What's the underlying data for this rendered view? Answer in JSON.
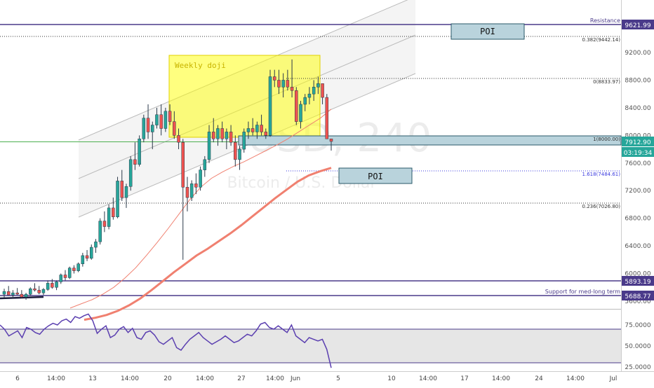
{
  "chart_data": {
    "type": "candlestick",
    "symbol_watermark": "BTCUSD, 240",
    "symbol_subtitle": "Bitcoin / U.S. Dollar",
    "x_tick_labels": [
      "6",
      "14:00",
      "13",
      "14:00",
      "20",
      "14:00",
      "27",
      "14:00",
      "Jun",
      "5",
      "10",
      "14:00",
      "17",
      "14:00",
      "24",
      "14:00",
      "Jul"
    ],
    "y_tick_labels": [
      "9200.00",
      "8800.00",
      "8400.00",
      "8000.00",
      "7600.00",
      "7200.00",
      "6800.00",
      "6400.00",
      "6000.00",
      "5600.00"
    ],
    "y_range": [
      5150,
      10050
    ],
    "last_price": {
      "value": "7912.90",
      "countdown": "03:19:34"
    },
    "horizontal_levels": [
      {
        "value": 9621.99,
        "label": "9621.99",
        "note": "Resistance"
      },
      {
        "value": 5893.19,
        "label": "5893.19",
        "note": ""
      },
      {
        "value": 5688.77,
        "label": "5688.77",
        "note": "Support for med-long term"
      }
    ],
    "fibonacci_levels": [
      {
        "ratio": "0.382",
        "value": 9442.14,
        "label": "0.382(9442.14)"
      },
      {
        "ratio": "0",
        "value": 8833.97,
        "label": "0(8833.97)"
      },
      {
        "ratio": "1",
        "value": 8000.0,
        "label": "1(8000.00)"
      },
      {
        "ratio": "1.618",
        "value": 7484.61,
        "label": "1.618(7484.61)"
      },
      {
        "ratio": "0.236",
        "value": 7026.8,
        "label": "0.236(7026.80)"
      }
    ],
    "annotations": [
      {
        "type": "box",
        "text": "Weekly doji",
        "color": "#ffff00"
      },
      {
        "type": "label",
        "text": "POI",
        "near_value": 9500
      },
      {
        "type": "label",
        "text": "POI",
        "near_value": 7420
      }
    ],
    "candles_ohlc": [
      [
        5700,
        5780,
        5650,
        5740
      ],
      [
        5740,
        5820,
        5700,
        5690
      ],
      [
        5690,
        5760,
        5640,
        5720
      ],
      [
        5720,
        5790,
        5690,
        5700
      ],
      [
        5700,
        5760,
        5640,
        5660
      ],
      [
        5660,
        5720,
        5620,
        5700
      ],
      [
        5700,
        5800,
        5680,
        5780
      ],
      [
        5780,
        5860,
        5740,
        5760
      ],
      [
        5760,
        5820,
        5700,
        5720
      ],
      [
        5720,
        5790,
        5690,
        5770
      ],
      [
        5770,
        5900,
        5750,
        5860
      ],
      [
        5860,
        5920,
        5780,
        5800
      ],
      [
        5800,
        5900,
        5760,
        5880
      ],
      [
        5880,
        6000,
        5850,
        5980
      ],
      [
        5980,
        6050,
        5900,
        5940
      ],
      [
        5940,
        6100,
        5920,
        6080
      ],
      [
        6080,
        6120,
        6000,
        6040
      ],
      [
        6040,
        6160,
        6020,
        6140
      ],
      [
        6140,
        6300,
        6100,
        6260
      ],
      [
        6260,
        6340,
        6180,
        6220
      ],
      [
        6220,
        6420,
        6200,
        6380
      ],
      [
        6380,
        6500,
        6300,
        6460
      ],
      [
        6460,
        6800,
        6420,
        6760
      ],
      [
        6760,
        6900,
        6600,
        6680
      ],
      [
        6680,
        7000,
        6640,
        6950
      ],
      [
        6950,
        7100,
        6780,
        6820
      ],
      [
        6820,
        7400,
        6800,
        7340
      ],
      [
        7340,
        7500,
        7050,
        7100
      ],
      [
        7100,
        7300,
        6950,
        7260
      ],
      [
        7260,
        7700,
        7200,
        7650
      ],
      [
        7650,
        7900,
        7500,
        7580
      ],
      [
        7580,
        8000,
        7550,
        7950
      ],
      [
        7950,
        8300,
        7900,
        8250
      ],
      [
        8250,
        8450,
        7950,
        8050
      ],
      [
        8050,
        8200,
        7800,
        8150
      ],
      [
        8150,
        8400,
        8100,
        8300
      ],
      [
        8300,
        8450,
        8000,
        8100
      ],
      [
        8100,
        8400,
        8050,
        8350
      ],
      [
        8350,
        8450,
        8150,
        8200
      ],
      [
        8200,
        8350,
        7950,
        8000
      ],
      [
        8000,
        8100,
        7800,
        7900
      ],
      [
        7900,
        7950,
        6200,
        7250
      ],
      [
        7250,
        7400,
        6900,
        7100
      ],
      [
        7100,
        7350,
        7050,
        7300
      ],
      [
        7300,
        7450,
        7150,
        7250
      ],
      [
        7250,
        7550,
        7200,
        7500
      ],
      [
        7500,
        7700,
        7400,
        7650
      ],
      [
        7650,
        8150,
        7600,
        8050
      ],
      [
        8050,
        8250,
        7900,
        7950
      ],
      [
        7950,
        8150,
        7850,
        8100
      ],
      [
        8100,
        8200,
        7900,
        7950
      ],
      [
        7950,
        8100,
        7800,
        8050
      ],
      [
        8050,
        8150,
        7850,
        7900
      ],
      [
        7900,
        8000,
        7550,
        7650
      ],
      [
        7650,
        7850,
        7500,
        7800
      ],
      [
        7800,
        8100,
        7750,
        8050
      ],
      [
        8050,
        8200,
        7950,
        8100
      ],
      [
        8100,
        8250,
        8000,
        8050
      ],
      [
        8050,
        8200,
        7950,
        8150
      ],
      [
        8150,
        8300,
        8000,
        8050
      ],
      [
        8050,
        8100,
        7950,
        8000
      ],
      [
        8000,
        8950,
        7980,
        8850
      ],
      [
        8850,
        8950,
        8700,
        8800
      ],
      [
        8800,
        8950,
        8600,
        8700
      ],
      [
        8700,
        8900,
        8550,
        8800
      ],
      [
        8800,
        8950,
        8650,
        8700
      ],
      [
        8700,
        9100,
        8550,
        8650
      ],
      [
        8650,
        8700,
        8150,
        8200
      ],
      [
        8200,
        8500,
        8100,
        8450
      ],
      [
        8450,
        8600,
        8350,
        8550
      ],
      [
        8550,
        8700,
        8450,
        8600
      ],
      [
        8600,
        8800,
        8500,
        8700
      ],
      [
        8700,
        8850,
        8600,
        8750
      ],
      [
        8750,
        8750,
        8450,
        8550
      ],
      [
        8550,
        8600,
        7950,
        7950
      ],
      [
        7950,
        7950,
        7780,
        7912.9
      ]
    ],
    "moving_averages": [
      {
        "name": "",
        "color": "#f08070",
        "values": [
          5500,
          5560,
          5620,
          5700,
          5800,
          5930,
          6080,
          6260,
          6450,
          6650,
          6860,
          7070,
          7250,
          7380,
          7470,
          7550,
          7620,
          7700,
          7780,
          7860,
          7950,
          8050,
          8150,
          8250,
          8380
        ]
      },
      {
        "name": "",
        "color": "#f08070",
        "values": [
          5330,
          5360,
          5400,
          5460,
          5540,
          5640,
          5760,
          5890,
          6020,
          6140,
          6260,
          6360,
          6470,
          6580,
          6700,
          6830,
          6960,
          7090,
          7210,
          7330,
          7420,
          7480,
          7530
        ]
      }
    ],
    "rsi": {
      "tick_labels": [
        "75.0000",
        "50.0000",
        "25.0000"
      ],
      "y_range": [
        20,
        100
      ],
      "upper_band": 70,
      "lower_band": 30,
      "values": [
        75,
        70,
        62,
        65,
        68,
        60,
        72,
        70,
        66,
        64,
        70,
        74,
        77,
        75,
        80,
        82,
        78,
        85,
        83,
        86,
        88,
        80,
        65,
        70,
        74,
        60,
        63,
        70,
        73,
        66,
        71,
        60,
        58,
        66,
        68,
        63,
        55,
        52,
        56,
        60,
        48,
        45,
        52,
        58,
        62,
        66,
        60,
        56,
        52,
        55,
        58,
        62,
        58,
        54,
        56,
        60,
        64,
        62,
        68,
        76,
        78,
        72,
        70,
        74,
        70,
        66,
        75,
        62,
        58,
        54,
        60,
        58,
        56,
        58,
        46,
        24
      ]
    }
  }
}
